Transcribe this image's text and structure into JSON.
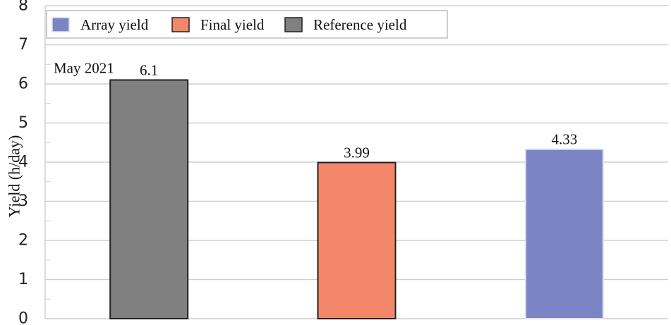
{
  "chart_data": {
    "type": "bar",
    "title": "",
    "xlabel": "",
    "ylabel": "Yield (h/day)",
    "ylim": [
      0,
      8
    ],
    "yticks": [
      0,
      1,
      2,
      3,
      4,
      5,
      6,
      7,
      8
    ],
    "grid": true,
    "legend_position": "top-left",
    "annotation": "May 2021",
    "bars": [
      {
        "name": "Reference yield",
        "value": 6.1,
        "label": "6.1",
        "color": "#808080",
        "stroke": "#222222"
      },
      {
        "name": "Final yield",
        "value": 3.99,
        "label": "3.99",
        "color": "#f4876a",
        "stroke": "#222222"
      },
      {
        "name": "Array yield",
        "value": 4.33,
        "label": "4.33",
        "color": "#7b84c4",
        "stroke": "#dde3f0"
      }
    ],
    "legend": [
      {
        "name": "Array yield",
        "color": "#7b84c4",
        "stroke": "#dde3f0"
      },
      {
        "name": "Final yield",
        "color": "#f4876a",
        "stroke": "#222222"
      },
      {
        "name": "Reference yield",
        "color": "#808080",
        "stroke": "#222222"
      }
    ]
  }
}
